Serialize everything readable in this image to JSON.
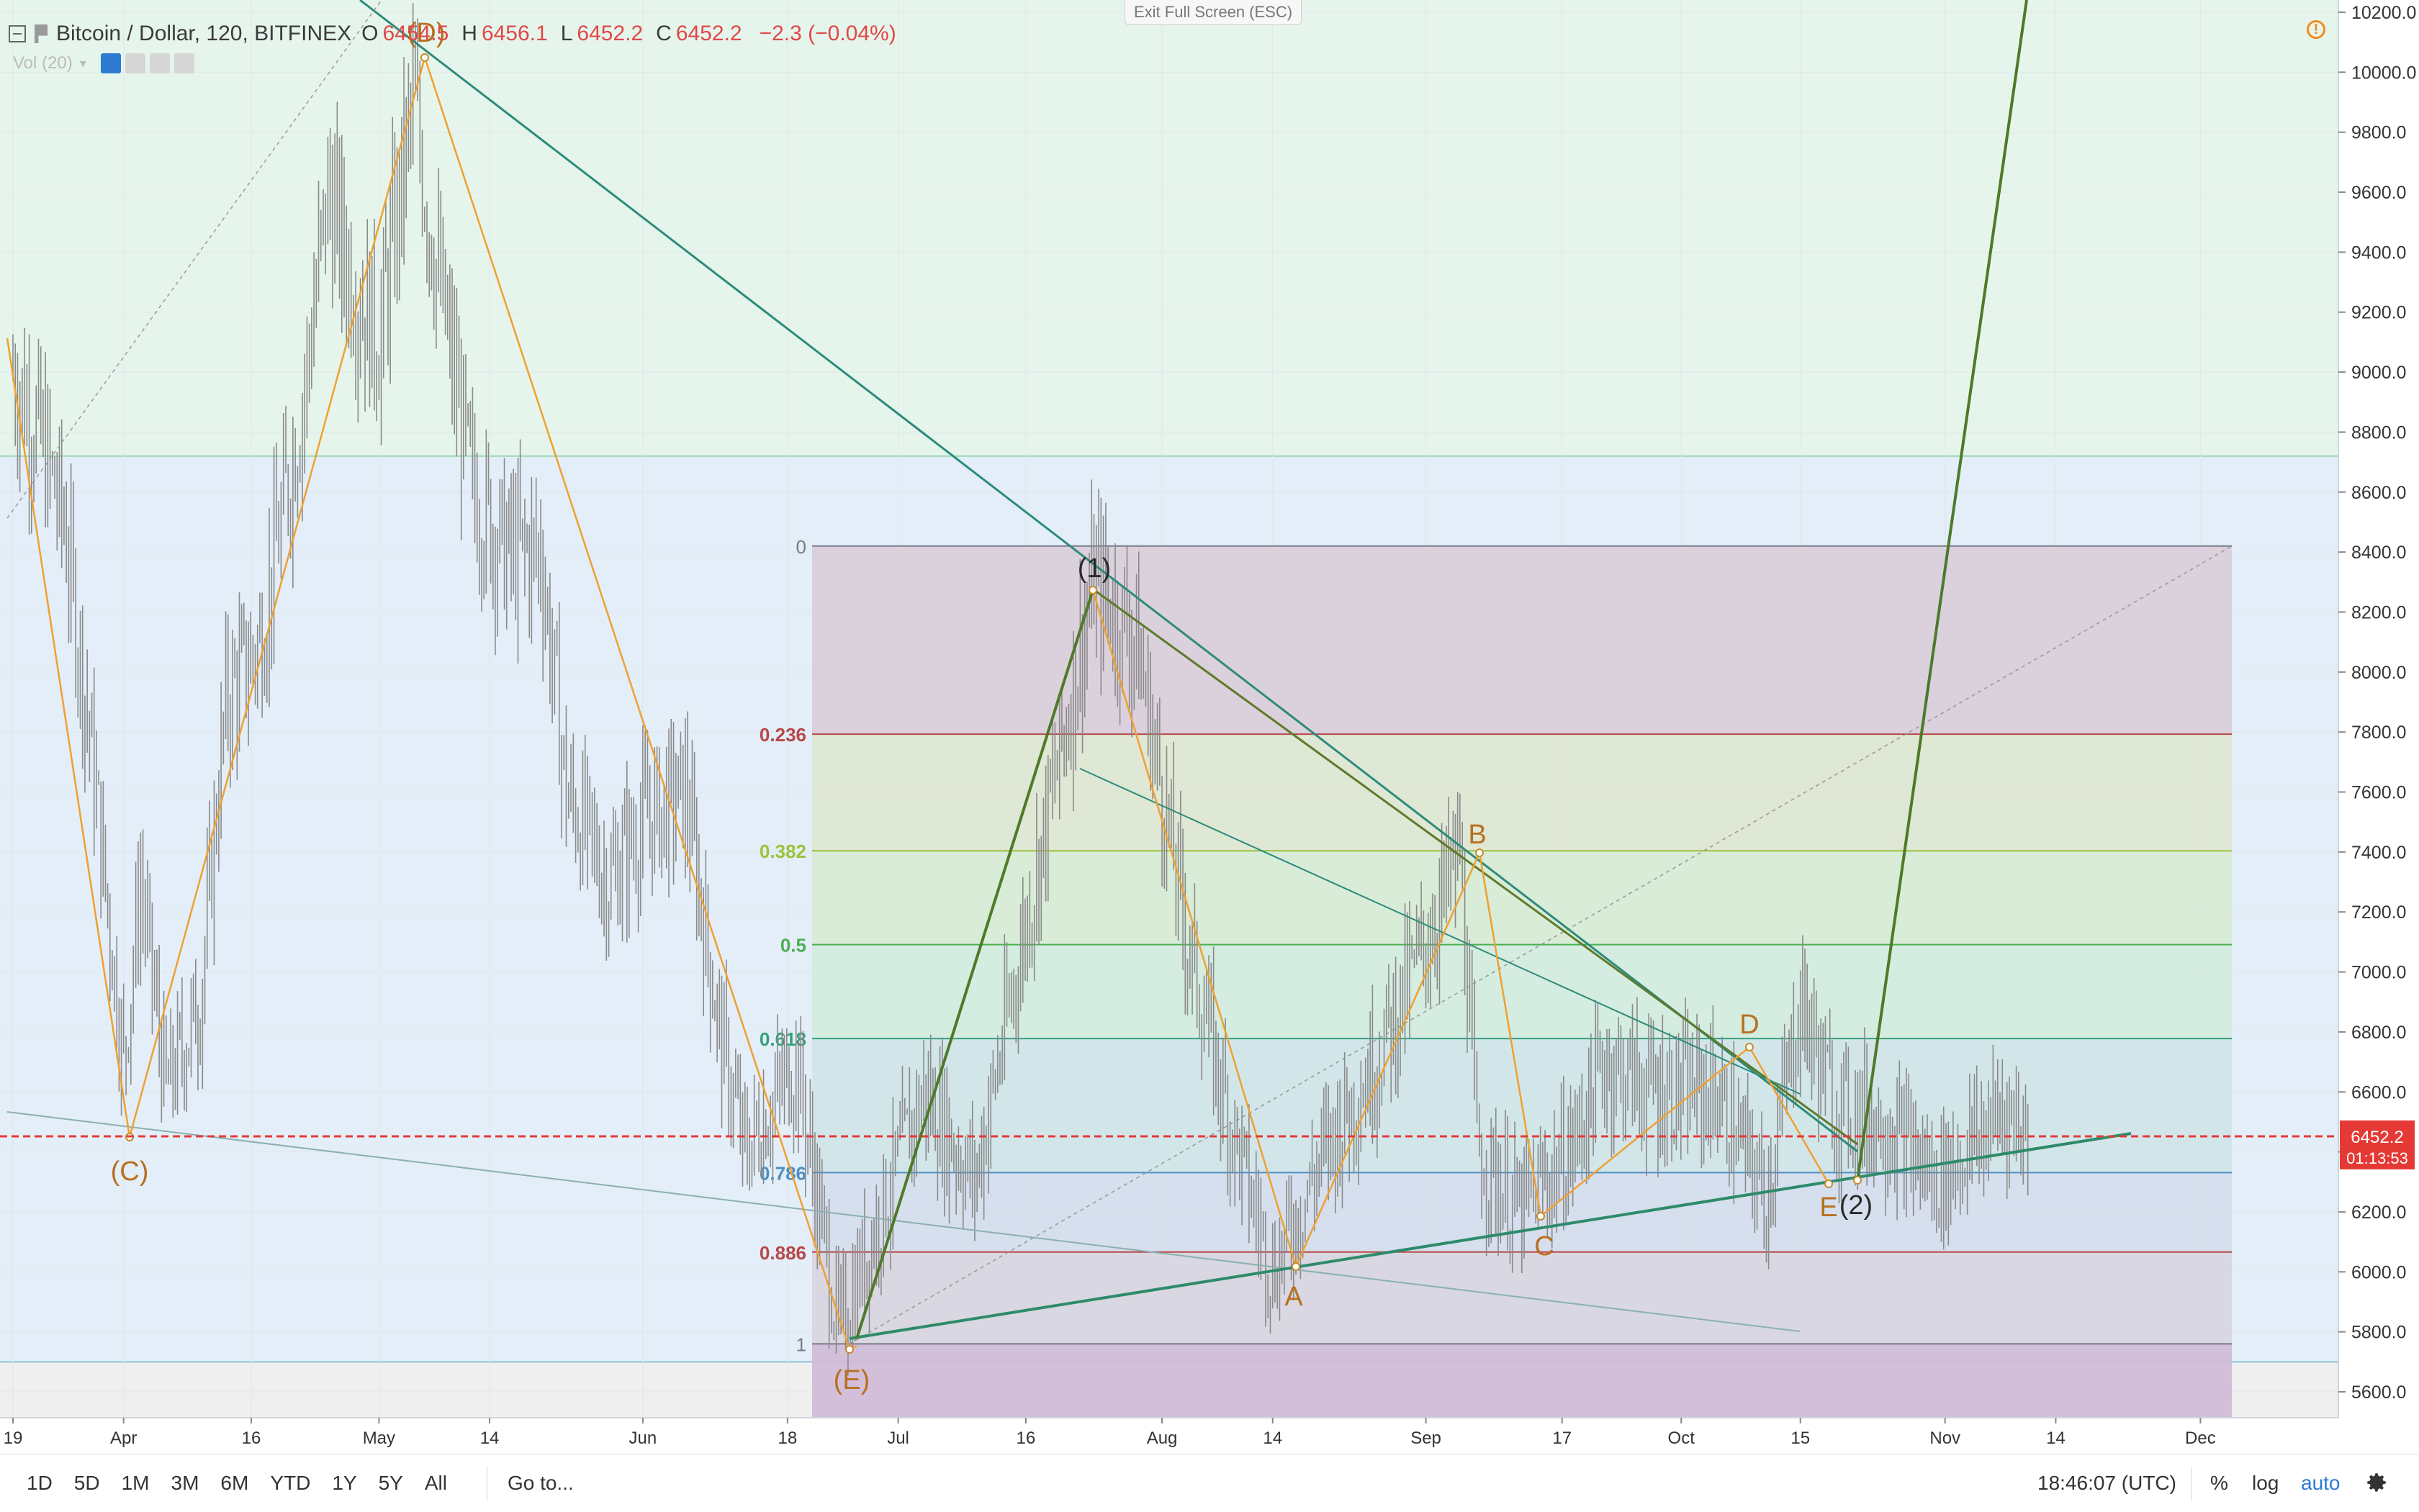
{
  "header": {
    "symbol": "Bitcoin / Dollar, 120, BITFINEX",
    "o_label": "O",
    "o_value": "6454.5",
    "h_label": "H",
    "h_value": "6456.1",
    "l_label": "L",
    "l_value": "6452.2",
    "c_label": "C",
    "c_value": "6452.2",
    "change": "−2.3 (−0.04%)",
    "vol_label": "Vol (20)"
  },
  "exit_fullscreen": "Exit Full Screen (ESC)",
  "colors": {
    "up_zone": "#e6f5ec",
    "mid_zone": "#e3eef8",
    "fib_line_0": "#787b86",
    "fib_236": "#b74848",
    "fib_382": "#9ac43a",
    "fib_5": "#4caf50",
    "fib_618": "#34a07a",
    "fib_786": "#4c8fc2",
    "fib_886": "#b74848",
    "wave_orange": "#f0a030",
    "trend_green": "#2e8b57",
    "last_price": "#e53935"
  },
  "chart_data": {
    "type": "line",
    "title": "",
    "symbol": "BTCUSD",
    "exchange": "BITFINEX",
    "timeframe": "120",
    "ylim": [
      5500,
      10250
    ],
    "y_ticks": [
      "10200.0",
      "10000.0",
      "9800.0",
      "9600.0",
      "9400.0",
      "9200.0",
      "9000.0",
      "8800.0",
      "8600.0",
      "8400.0",
      "8200.0",
      "8000.0",
      "7800.0",
      "7600.0",
      "7400.0",
      "7200.0",
      "7000.0",
      "6800.0",
      "6600.0",
      "6400.0",
      "6200.0",
      "6000.0",
      "5800.0",
      "5600.0"
    ],
    "x_ticks": [
      "19",
      "Apr",
      "16",
      "May",
      "14",
      "Jun",
      "18",
      "Jul",
      "16",
      "Aug",
      "14",
      "Sep",
      "17",
      "Oct",
      "15",
      "Nov",
      "14",
      "Dec"
    ],
    "last_price": "6452.2",
    "countdown": "01:13:53",
    "price_path": [
      {
        "x": "2018-03-19",
        "y": 9000
      },
      {
        "x": "2018-03-22",
        "y": 8800
      },
      {
        "x": "2018-03-25",
        "y": 8500
      },
      {
        "x": "2018-03-28",
        "y": 7800
      },
      {
        "x": "2018-04-01",
        "y": 6700
      },
      {
        "x": "2018-04-03",
        "y": 7300
      },
      {
        "x": "2018-04-06",
        "y": 6600
      },
      {
        "x": "2018-04-10",
        "y": 6900
      },
      {
        "x": "2018-04-13",
        "y": 7900
      },
      {
        "x": "2018-04-17",
        "y": 8100
      },
      {
        "x": "2018-04-22",
        "y": 8900
      },
      {
        "x": "2018-04-25",
        "y": 9600
      },
      {
        "x": "2018-04-28",
        "y": 9300
      },
      {
        "x": "2018-05-01",
        "y": 9100
      },
      {
        "x": "2018-05-05",
        "y": 9900
      },
      {
        "x": "2018-05-08",
        "y": 9300
      },
      {
        "x": "2018-05-12",
        "y": 8600
      },
      {
        "x": "2018-05-16",
        "y": 8400
      },
      {
        "x": "2018-05-20",
        "y": 8400
      },
      {
        "x": "2018-05-23",
        "y": 7600
      },
      {
        "x": "2018-05-28",
        "y": 7300
      },
      {
        "x": "2018-06-01",
        "y": 7500
      },
      {
        "x": "2018-06-06",
        "y": 7600
      },
      {
        "x": "2018-06-10",
        "y": 6800
      },
      {
        "x": "2018-06-13",
        "y": 6400
      },
      {
        "x": "2018-06-19",
        "y": 6700
      },
      {
        "x": "2018-06-24",
        "y": 5800
      },
      {
        "x": "2018-06-29",
        "y": 6200
      },
      {
        "x": "2018-07-04",
        "y": 6600
      },
      {
        "x": "2018-07-10",
        "y": 6300
      },
      {
        "x": "2018-07-17",
        "y": 7300
      },
      {
        "x": "2018-07-24",
        "y": 8300
      },
      {
        "x": "2018-07-29",
        "y": 8100
      },
      {
        "x": "2018-08-04",
        "y": 7100
      },
      {
        "x": "2018-08-09",
        "y": 6500
      },
      {
        "x": "2018-08-14",
        "y": 6000
      },
      {
        "x": "2018-08-20",
        "y": 6400
      },
      {
        "x": "2018-08-26",
        "y": 6700
      },
      {
        "x": "2018-09-01",
        "y": 7100
      },
      {
        "x": "2018-09-05",
        "y": 7400
      },
      {
        "x": "2018-09-07",
        "y": 6400
      },
      {
        "x": "2018-09-12",
        "y": 6200
      },
      {
        "x": "2018-09-18",
        "y": 6400
      },
      {
        "x": "2018-09-22",
        "y": 6700
      },
      {
        "x": "2018-09-28",
        "y": 6600
      },
      {
        "x": "2018-10-05",
        "y": 6600
      },
      {
        "x": "2018-10-11",
        "y": 6250
      },
      {
        "x": "2018-10-15",
        "y": 6900
      },
      {
        "x": "2018-10-19",
        "y": 6550
      },
      {
        "x": "2018-10-25",
        "y": 6500
      },
      {
        "x": "2018-10-31",
        "y": 6300
      },
      {
        "x": "2018-11-05",
        "y": 6450
      },
      {
        "x": "2018-11-08",
        "y": 6550
      },
      {
        "x": "2018-11-11",
        "y": 6452
      }
    ],
    "fib_levels": [
      {
        "label": "0",
        "price": 8420
      },
      {
        "label": "0.236",
        "price": 7793
      },
      {
        "label": "0.382",
        "price": 7404
      },
      {
        "label": "0.5",
        "price": 7091
      },
      {
        "label": "0.618",
        "price": 6778
      },
      {
        "label": "0.786",
        "price": 6331
      },
      {
        "label": "0.886",
        "price": 6066
      },
      {
        "label": "1",
        "price": 5760
      }
    ],
    "wave_labels": [
      {
        "text": "(D)",
        "x": "2018-05-06",
        "y": 10050
      },
      {
        "text": "(C)",
        "x": "2018-04-01",
        "y": 6450
      },
      {
        "text": "(E)",
        "x": "2018-06-24",
        "y": 5760
      },
      {
        "text": "(1)",
        "x": "2018-07-23",
        "y": 8270
      },
      {
        "text": "A",
        "x": "2018-08-14",
        "y": 6010
      },
      {
        "text": "B",
        "x": "2018-09-05",
        "y": 7400
      },
      {
        "text": "C",
        "x": "2018-09-13",
        "y": 6180
      },
      {
        "text": "D",
        "x": "2018-10-07",
        "y": 6760
      },
      {
        "text": "E",
        "x": "2018-10-15",
        "y": 6300
      },
      {
        "text": "(2)",
        "x": "2018-10-18",
        "y": 6330
      }
    ]
  },
  "bottom_bar": {
    "timeframes": [
      "1D",
      "5D",
      "1M",
      "3M",
      "6M",
      "YTD",
      "1Y",
      "5Y",
      "All"
    ],
    "goto": "Go to...",
    "clock": "18:46:07 (UTC)",
    "percent": "%",
    "log": "log",
    "auto": "auto"
  }
}
